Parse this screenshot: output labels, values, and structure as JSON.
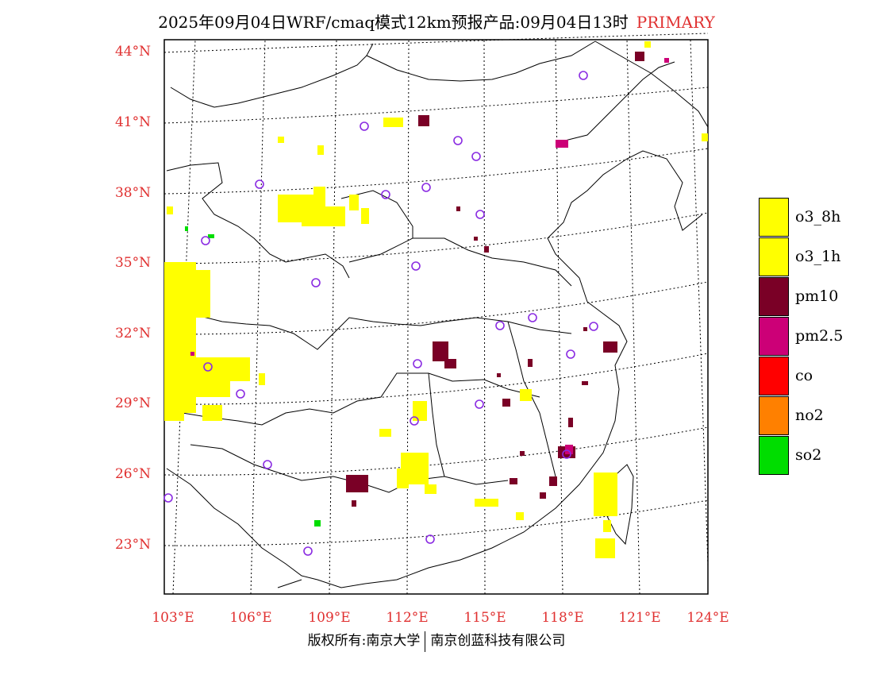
{
  "header": {
    "title": "2025年09月04日WRF/cmaq模式12km预报产品:09月04日13时",
    "tag": "PRIMARY"
  },
  "axes": {
    "lat_labels": [
      "44°N",
      "41°N",
      "38°N",
      "35°N",
      "32°N",
      "29°N",
      "26°N",
      "23°N"
    ],
    "lon_labels": [
      "103°E",
      "106°E",
      "109°E",
      "112°E",
      "115°E",
      "118°E",
      "121°E",
      "124°E"
    ]
  },
  "legend": [
    {
      "label": "o3_8h",
      "color": "#ffff00"
    },
    {
      "label": "o3_1h",
      "color": "#ffff00"
    },
    {
      "label": "pm10",
      "color": "#7a0026"
    },
    {
      "label": "pm2.5",
      "color": "#cc0077"
    },
    {
      "label": "co",
      "color": "#ff0000"
    },
    {
      "label": "no2",
      "color": "#ff8000"
    },
    {
      "label": "so2",
      "color": "#00dd00"
    }
  ],
  "footer": {
    "left": "版权所有:南京大学",
    "right": "南京创蓝科技有限公司"
  }
}
